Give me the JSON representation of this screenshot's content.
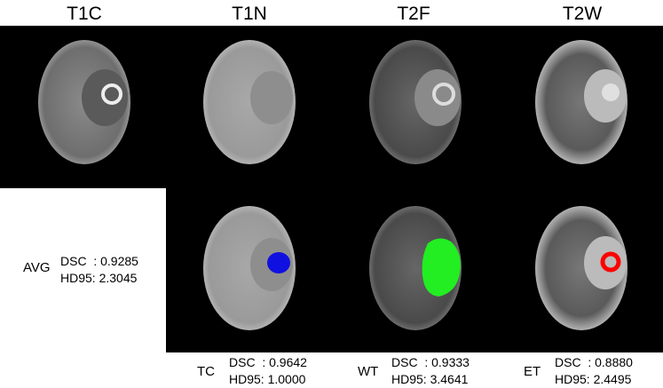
{
  "columns": [
    "T1C",
    "T1N",
    "T2F",
    "T2W"
  ],
  "average": {
    "label": "AVG",
    "dsc": "DSC  : 0.9285",
    "hd95": "HD95: 2.3045"
  },
  "regions": [
    {
      "label": "TC",
      "dsc": "DSC  : 0.9642",
      "hd95": "HD95: 1.0000"
    },
    {
      "label": "WT",
      "dsc": "DSC  : 0.9333",
      "hd95": "HD95: 3.4641"
    },
    {
      "label": "ET",
      "dsc": "DSC  : 0.8880",
      "hd95": "HD95: 2.4495"
    }
  ]
}
